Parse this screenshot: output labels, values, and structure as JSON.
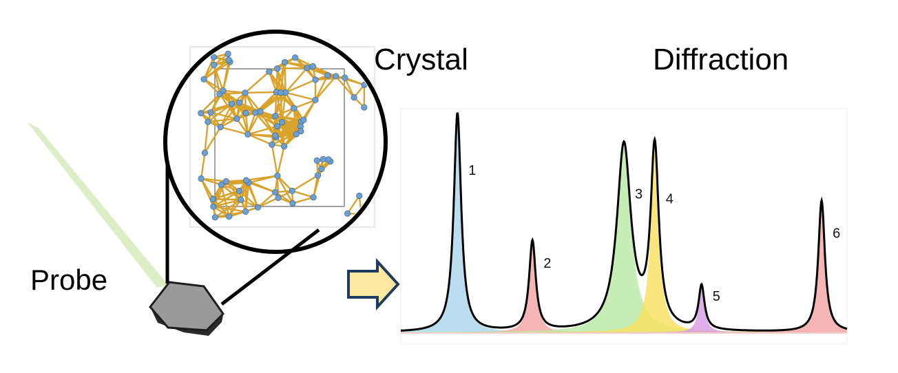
{
  "labels": {
    "crystal": "Crystal",
    "diffraction": "Diffraction",
    "probe": "Probe"
  },
  "colors": {
    "beam": "#d7ecbf",
    "crystal_face": "#9a9a9a",
    "crystal_side": "#2b2b2b",
    "bond": "#d9a22a",
    "atom": "#6f9fd0",
    "arrow_fill": "#fde9a0",
    "arrow_stroke": "#1f3b63"
  },
  "chart_data": {
    "type": "area",
    "title": "",
    "xlabel": "",
    "ylabel": "",
    "xlim": [
      0,
      100
    ],
    "ylim": [
      0,
      1
    ],
    "peaks": [
      {
        "label": "1",
        "center": 12.7,
        "height": 1.0,
        "width": 1.0,
        "color": "#a9d6ec"
      },
      {
        "label": "2",
        "center": 29.5,
        "height": 0.41,
        "width": 0.9,
        "color": "#f2a3a3"
      },
      {
        "label": "3",
        "center": 50.0,
        "height": 0.85,
        "width": 1.9,
        "color": "#b9e8a4"
      },
      {
        "label": "4",
        "center": 56.9,
        "height": 0.82,
        "width": 1.1,
        "color": "#f7e15c"
      },
      {
        "label": "5",
        "center": 67.4,
        "height": 0.2,
        "width": 0.8,
        "color": "#d79ae5"
      },
      {
        "label": "6",
        "center": 94.3,
        "height": 0.6,
        "width": 0.9,
        "color": "#f2a3a3"
      }
    ]
  }
}
